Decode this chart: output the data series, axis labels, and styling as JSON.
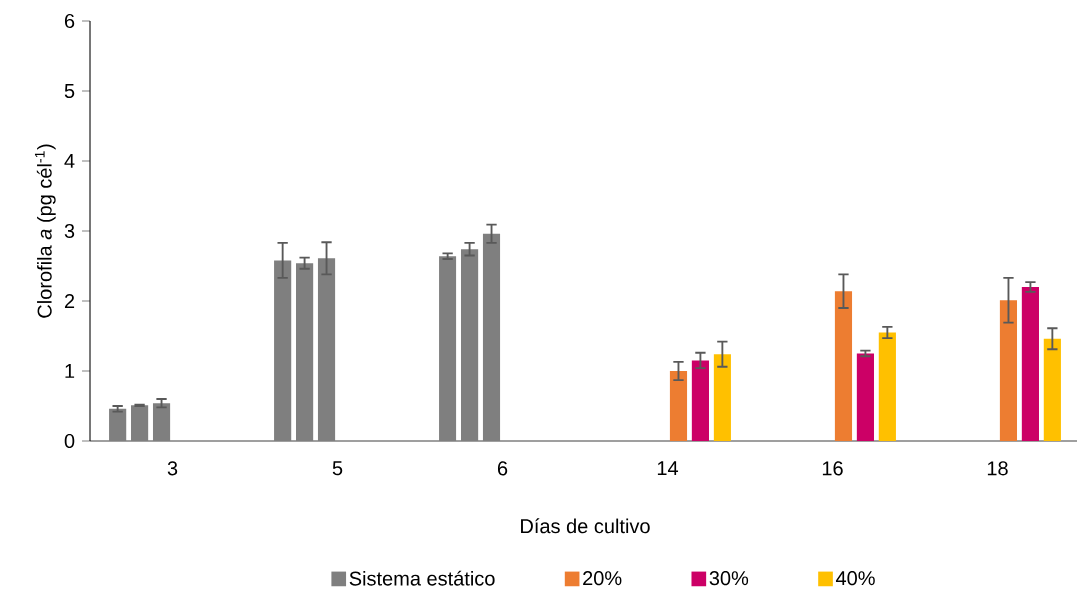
{
  "chart_data": {
    "type": "bar",
    "xlabel": "Días de cultivo",
    "ylabel": "Clorofila *a* (pg cél$^{-1}$)",
    "categories": [
      "3",
      "5",
      "6",
      "14",
      "16",
      "18"
    ],
    "ylim": [
      0,
      6
    ],
    "yticks": [
      0,
      1,
      2,
      3,
      4,
      5,
      6
    ],
    "legend": "bottom",
    "series": [
      {
        "name": "Sistema estático",
        "color": "#7f7f7f",
        "values": [
          0.46,
          2.58,
          2.64,
          0,
          0,
          0
        ],
        "errors": [
          0.04,
          0.25,
          0.04,
          null,
          null,
          null
        ]
      },
      {
        "color": "#7f7f7f",
        "values": [
          0.51,
          2.54,
          2.74,
          0,
          0,
          0
        ],
        "errors": [
          0.01,
          0.08,
          0.09,
          null,
          null,
          null
        ]
      },
      {
        "color": "#7f7f7f",
        "values": [
          0.54,
          2.61,
          2.96,
          0,
          0,
          0
        ],
        "errors": [
          0.06,
          0.23,
          0.13,
          null,
          null,
          null
        ]
      },
      {
        "name": "20%",
        "color": "#ed7d31",
        "values": [
          0,
          0,
          0,
          1.0,
          2.14,
          2.01
        ],
        "errors": [
          null,
          null,
          null,
          0.13,
          0.24,
          0.32
        ]
      },
      {
        "name": "30%",
        "color": "#cc0066",
        "values": [
          0,
          0,
          0,
          1.15,
          1.25,
          2.2
        ],
        "errors": [
          null,
          null,
          null,
          0.11,
          0.04,
          0.07
        ]
      },
      {
        "name": "40%",
        "color": "#ffc000",
        "values": [
          0,
          0,
          0,
          1.24,
          1.55,
          1.46
        ],
        "errors": [
          null,
          null,
          null,
          0.18,
          0.08,
          0.15
        ]
      }
    ]
  }
}
